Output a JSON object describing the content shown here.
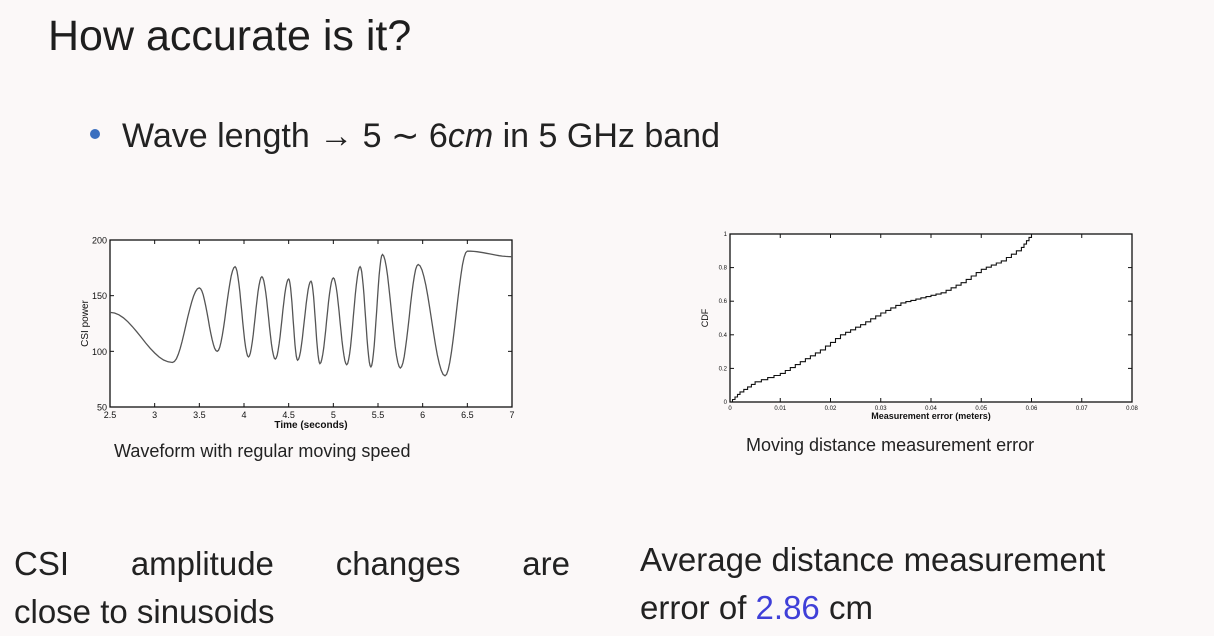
{
  "slide": {
    "title": "How accurate is it?",
    "bullet": {
      "pre": "Wave length",
      "arrow": "→",
      "range_pre": "5 ∼ 6",
      "range_unit": "cm",
      "post": "in 5 GHz band"
    }
  },
  "charts": {
    "left_caption": "Waveform with regular moving speed",
    "right_caption": "Moving distance measurement error"
  },
  "chart_data": [
    {
      "type": "line",
      "xlabel": "Time (seconds)",
      "ylabel": "CSI power",
      "xlim": [
        2.5,
        7
      ],
      "ylim": [
        50,
        200
      ],
      "xticks": [
        "2.5",
        "3",
        "3.5",
        "4",
        "4.5",
        "5",
        "5.5",
        "6",
        "6.5",
        "7"
      ],
      "yticks": [
        "50",
        "100",
        "150",
        "200"
      ],
      "peaks": [
        [
          3.5,
          157
        ],
        [
          3.9,
          176
        ],
        [
          4.2,
          167
        ],
        [
          4.5,
          165
        ],
        [
          4.75,
          163
        ],
        [
          5.0,
          166
        ],
        [
          5.3,
          176
        ],
        [
          5.55,
          187
        ],
        [
          5.95,
          178
        ],
        [
          6.5,
          190
        ],
        [
          7.0,
          185
        ]
      ],
      "troughs": [
        [
          2.5,
          135
        ],
        [
          3.2,
          90
        ],
        [
          3.7,
          100
        ],
        [
          4.05,
          95
        ],
        [
          4.35,
          93
        ],
        [
          4.6,
          92
        ],
        [
          4.85,
          89
        ],
        [
          5.15,
          88
        ],
        [
          5.42,
          86
        ],
        [
          5.75,
          85
        ],
        [
          6.25,
          78
        ]
      ],
      "grid": false
    },
    {
      "type": "line",
      "xlabel": "Measurement error (meters)",
      "ylabel": "CDF",
      "xlim": [
        0,
        0.08
      ],
      "ylim": [
        0,
        1
      ],
      "xticks": [
        "0",
        "0.01",
        "0.02",
        "0.03",
        "0.04",
        "0.05",
        "0.06",
        "0.07",
        "0.08"
      ],
      "yticks": [
        "0",
        "0.2",
        "0.4",
        "0.6",
        "0.8",
        "1"
      ],
      "x": [
        0,
        0.002,
        0.005,
        0.01,
        0.014,
        0.018,
        0.022,
        0.026,
        0.03,
        0.034,
        0.038,
        0.042,
        0.046,
        0.05,
        0.054,
        0.058,
        0.06
      ],
      "y": [
        0,
        0.06,
        0.12,
        0.17,
        0.24,
        0.31,
        0.4,
        0.46,
        0.53,
        0.59,
        0.62,
        0.65,
        0.71,
        0.79,
        0.84,
        0.92,
        1.0
      ],
      "grid": false
    }
  ],
  "bottom": {
    "left_words": [
      "CSI",
      "amplitude",
      "changes",
      "are"
    ],
    "left_line2": "close to sinusoids",
    "right_line1": "Average distance measurement",
    "right_line2_pre": "error of",
    "right_value": "2.86",
    "right_unit": "cm"
  }
}
